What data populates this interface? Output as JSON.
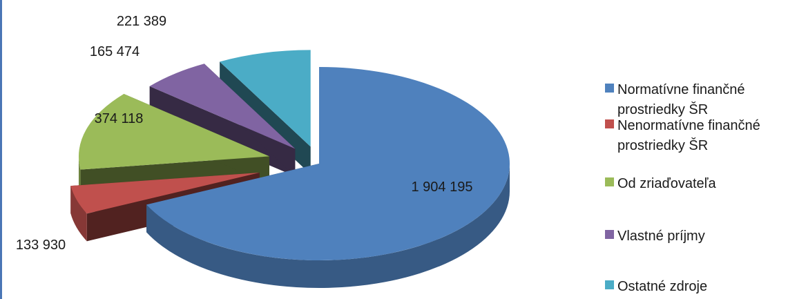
{
  "chart_data": {
    "type": "pie",
    "variant": "3d-exploded",
    "title": "",
    "slices": [
      {
        "label": "Normatívne finančné prostriedky ŠR",
        "value": 1904195,
        "value_label": "1 904 195",
        "color": "#4f81bd"
      },
      {
        "label": "Nenormatívne finančné prostriedky ŠR",
        "value": 133930,
        "value_label": "133 930",
        "color": "#c0504d"
      },
      {
        "label": "Od zriaďovateľa",
        "value": 374118,
        "value_label": "374 118",
        "color": "#9bbb59"
      },
      {
        "label": "Vlastné príjmy",
        "value": 165474,
        "value_label": "165 474",
        "color": "#8064a2"
      },
      {
        "label": "Ostatné zdroje",
        "value": 221389,
        "value_label": "221 389",
        "color": "#4bacc6"
      }
    ],
    "legend_position": "right"
  }
}
